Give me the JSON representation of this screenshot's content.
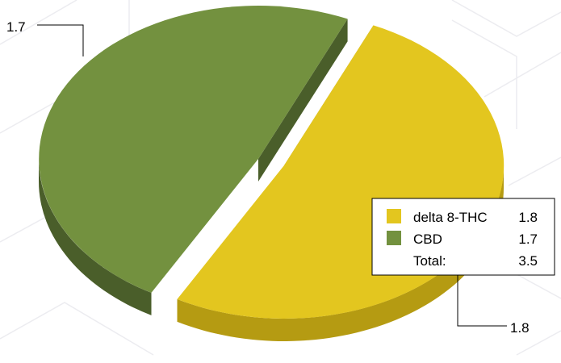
{
  "chart_data": {
    "type": "pie",
    "title": "",
    "slices": [
      {
        "label": "delta 8-THC",
        "value": 1.8,
        "value_label": "1.8",
        "color": "#e3c61f",
        "side_color": "#b59b12"
      },
      {
        "label": "CBD",
        "value": 1.7,
        "value_label": "1.7",
        "color": "#73913f",
        "side_color": "#4a5e2a"
      }
    ],
    "total_label": "Total:",
    "total_value": "3.5",
    "legend_position": "right",
    "style": "3d-exploded"
  },
  "colors": {
    "background": "#ffffff",
    "pattern_line": "#ececf0",
    "leader_line": "#000000",
    "legend_border": "#000000"
  }
}
